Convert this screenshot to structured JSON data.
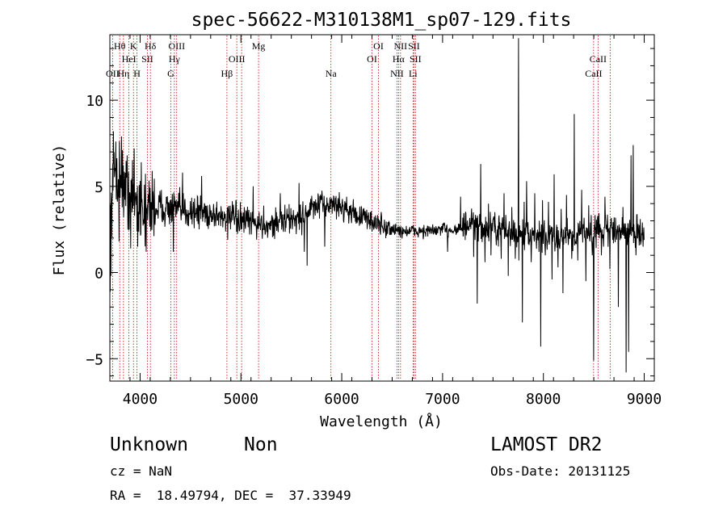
{
  "chart_data": {
    "type": "line",
    "title": "spec-56622-M310138M1_sp07-129.fits",
    "xlabel": "Wavelength (Å)",
    "ylabel": "Flux (relative)",
    "xlim": [
      3700,
      9100
    ],
    "ylim": [
      -6.3,
      13.8
    ],
    "x_ticks": [
      4000,
      5000,
      6000,
      7000,
      8000,
      9000
    ],
    "y_ticks": [
      -5,
      0,
      5,
      10
    ],
    "grid": false,
    "line_color": "#000000",
    "marker_color": "#cc0000",
    "lines": [
      {
        "label": "OII",
        "wave": 3727,
        "row": 2
      },
      {
        "label": "Hθ",
        "wave": 3798,
        "row": 0
      },
      {
        "label": "Hη",
        "wave": 3835,
        "row": 2
      },
      {
        "label": "HeI",
        "wave": 3889,
        "row": 1
      },
      {
        "label": "K",
        "wave": 3934,
        "row": 0
      },
      {
        "label": "SII",
        "wave": 4072,
        "row": 1
      },
      {
        "label": "H",
        "wave": 3969,
        "row": 2
      },
      {
        "label": "Hδ",
        "wave": 4102,
        "row": 0
      },
      {
        "label": "OIII",
        "wave": 4363,
        "row": 0
      },
      {
        "label": "Hγ",
        "wave": 4340,
        "row": 1
      },
      {
        "label": "G",
        "wave": 4305,
        "row": 2
      },
      {
        "label": "OIII",
        "wave": 4959,
        "row": 1
      },
      {
        "label": "Hβ",
        "wave": 4861,
        "row": 2
      },
      {
        "label": "OIII",
        "wave": 5007,
        "row": null
      },
      {
        "label": "Mg",
        "wave": 5175,
        "row": 0
      },
      {
        "label": "Na",
        "wave": 5893,
        "row": 2
      },
      {
        "label": "OI",
        "wave": 6364,
        "row": 0
      },
      {
        "label": "OI",
        "wave": 6300,
        "row": 1
      },
      {
        "label": "NII",
        "wave": 6583,
        "row": 0
      },
      {
        "label": "Hα",
        "wave": 6563,
        "row": 1
      },
      {
        "label": "NII",
        "wave": 6548,
        "row": 2
      },
      {
        "label": "SII",
        "wave": 6716,
        "row": 0
      },
      {
        "label": "SII",
        "wave": 6731,
        "row": 1
      },
      {
        "label": "Li",
        "wave": 6707,
        "row": 2
      },
      {
        "label": "CaII",
        "wave": 8542,
        "row": 1
      },
      {
        "label": "CaII",
        "wave": 8498,
        "row": 2
      },
      {
        "label": "CaII",
        "wave": 8662,
        "row": null
      }
    ],
    "anchors": [
      [
        3700,
        1.2
      ],
      [
        3720,
        4.5
      ],
      [
        3750,
        6.0
      ],
      [
        3800,
        5.5
      ],
      [
        3850,
        4.8
      ],
      [
        3900,
        4.5
      ],
      [
        3950,
        4.2
      ],
      [
        4000,
        3.9
      ],
      [
        4050,
        3.8
      ],
      [
        4100,
        3.7
      ],
      [
        4200,
        3.8
      ],
      [
        4300,
        3.7
      ],
      [
        4400,
        3.6
      ],
      [
        4500,
        3.6
      ],
      [
        4600,
        3.5
      ],
      [
        4700,
        3.4
      ],
      [
        4800,
        3.3
      ],
      [
        4900,
        3.2
      ],
      [
        5000,
        3.0
      ],
      [
        5100,
        2.9
      ],
      [
        5200,
        2.8
      ],
      [
        5300,
        2.8
      ],
      [
        5400,
        3.0
      ],
      [
        5500,
        3.1
      ],
      [
        5600,
        3.2
      ],
      [
        5700,
        3.7
      ],
      [
        5800,
        3.9
      ],
      [
        5900,
        4.0
      ],
      [
        6000,
        3.8
      ],
      [
        6100,
        3.5
      ],
      [
        6200,
        3.2
      ],
      [
        6300,
        3.0
      ],
      [
        6400,
        2.7
      ],
      [
        6500,
        2.5
      ],
      [
        6600,
        2.4
      ],
      [
        6700,
        2.4
      ],
      [
        6800,
        2.4
      ],
      [
        6900,
        2.4
      ],
      [
        7000,
        2.5
      ],
      [
        7100,
        2.5
      ],
      [
        7200,
        2.6
      ],
      [
        7300,
        2.7
      ],
      [
        7400,
        2.6
      ],
      [
        7500,
        2.5
      ],
      [
        7600,
        2.5
      ],
      [
        7700,
        2.3
      ],
      [
        7800,
        2.2
      ],
      [
        7900,
        2.0
      ],
      [
        8000,
        2.0
      ],
      [
        8100,
        2.1
      ],
      [
        8200,
        2.2
      ],
      [
        8300,
        2.2
      ],
      [
        8400,
        2.4
      ],
      [
        8500,
        2.4
      ],
      [
        8600,
        2.5
      ],
      [
        8700,
        2.4
      ],
      [
        8800,
        2.3
      ],
      [
        8900,
        2.4
      ],
      [
        9000,
        2.3
      ]
    ],
    "features": [
      [
        3712,
        -0.2
      ],
      [
        3735,
        8.2
      ],
      [
        3760,
        7.6
      ],
      [
        3790,
        1.8
      ],
      [
        3815,
        7.9
      ],
      [
        3870,
        6.8
      ],
      [
        3905,
        1.4
      ],
      [
        3940,
        7.2
      ],
      [
        3975,
        1.5
      ],
      [
        4010,
        6.4
      ],
      [
        4060,
        1.2
      ],
      [
        4120,
        5.9
      ],
      [
        4330,
        1.2
      ],
      [
        4420,
        5.8
      ],
      [
        4610,
        5.6
      ],
      [
        4870,
        1.9
      ],
      [
        5120,
        5.0
      ],
      [
        5390,
        4.6
      ],
      [
        5575,
        5.2
      ],
      [
        5630,
        1.2
      ],
      [
        5655,
        0.4
      ],
      [
        5830,
        1.5
      ],
      [
        6050,
        4.4
      ],
      [
        7050,
        1.2
      ],
      [
        7180,
        4.4
      ],
      [
        7285,
        3.2
      ],
      [
        7310,
        0.9
      ],
      [
        7345,
        -1.8
      ],
      [
        7355,
        1.8
      ],
      [
        7380,
        6.3
      ],
      [
        7420,
        0.6
      ],
      [
        7455,
        4.0
      ],
      [
        7480,
        1.0
      ],
      [
        7520,
        3.5
      ],
      [
        7580,
        0.8
      ],
      [
        7610,
        4.6
      ],
      [
        7650,
        -0.2
      ],
      [
        7685,
        3.8
      ],
      [
        7720,
        0.8
      ],
      [
        7752,
        13.6
      ],
      [
        7755,
        0.7
      ],
      [
        7790,
        -2.9
      ],
      [
        7810,
        4.1
      ],
      [
        7835,
        5.3
      ],
      [
        7880,
        0.6
      ],
      [
        7915,
        4.6
      ],
      [
        7955,
        1.2
      ],
      [
        7972,
        -4.3
      ],
      [
        7990,
        4.2
      ],
      [
        8020,
        1.0
      ],
      [
        8050,
        4.1
      ],
      [
        8085,
        -0.4
      ],
      [
        8105,
        5.7
      ],
      [
        8145,
        0.3
      ],
      [
        8175,
        3.7
      ],
      [
        8195,
        -1.2
      ],
      [
        8230,
        4.5
      ],
      [
        8280,
        0.8
      ],
      [
        8305,
        9.2
      ],
      [
        8340,
        0.7
      ],
      [
        8380,
        4.8
      ],
      [
        8420,
        -0.5
      ],
      [
        8450,
        3.9
      ],
      [
        8485,
        1.0
      ],
      [
        8498,
        -5.1
      ],
      [
        8540,
        3.3
      ],
      [
        8575,
        1.0
      ],
      [
        8610,
        4.4
      ],
      [
        8660,
        0.2
      ],
      [
        8700,
        3.2
      ],
      [
        8745,
        -2.0
      ],
      [
        8790,
        3.8
      ],
      [
        8820,
        -5.8
      ],
      [
        8845,
        -4.6
      ],
      [
        8870,
        6.8
      ],
      [
        8890,
        7.4
      ],
      [
        8920,
        1.0
      ],
      [
        8960,
        3.1
      ],
      [
        8990,
        1.5
      ]
    ]
  },
  "info": {
    "class": "Unknown",
    "subclass": "Non",
    "cz": "cz = NaN",
    "coords": "RA =  18.49794, DEC =  37.33949",
    "survey": "LAMOST DR2",
    "obs_date": "Obs-Date: 20131125"
  }
}
